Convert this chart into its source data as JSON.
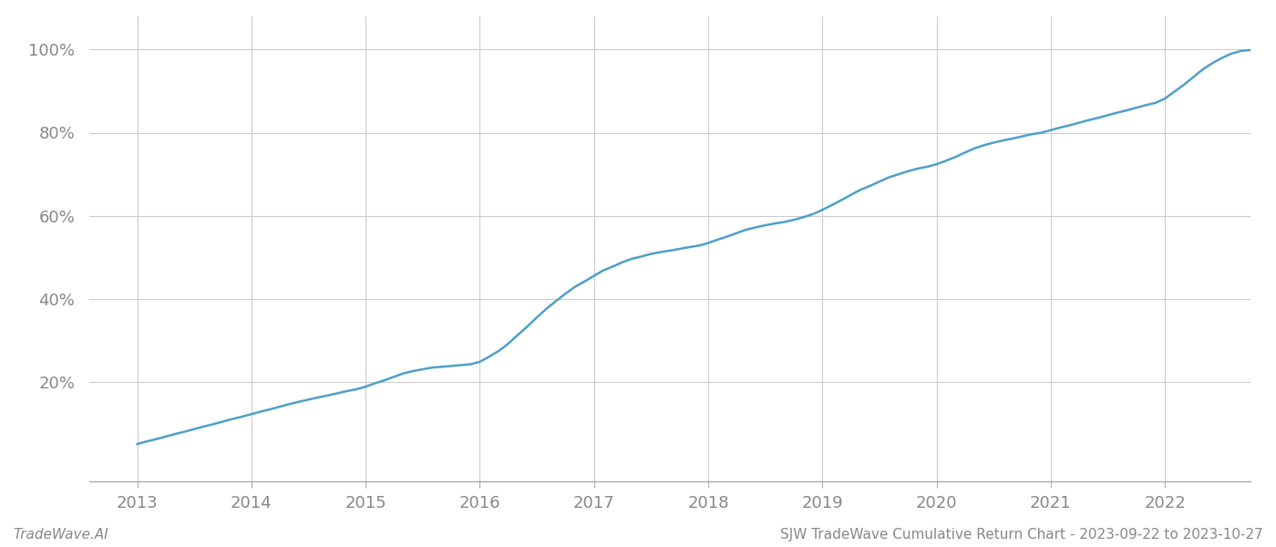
{
  "title": "SJW TradeWave Cumulative Return Chart - 2023-09-22 to 2023-10-27",
  "watermark": "TradeWave.AI",
  "x_years": [
    2013,
    2014,
    2015,
    2016,
    2017,
    2018,
    2019,
    2020,
    2021,
    2022
  ],
  "y_ticks": [
    0.2,
    0.4,
    0.6,
    0.8,
    1.0
  ],
  "y_tick_labels": [
    "20%",
    "40%",
    "60%",
    "80%",
    "100%"
  ],
  "line_color": "#4f9fca",
  "line_width": 1.8,
  "background_color": "#ffffff",
  "grid_color": "#cccccc",
  "x_data": [
    2013.0,
    2013.08,
    2013.17,
    2013.25,
    2013.33,
    2013.42,
    2013.5,
    2013.58,
    2013.67,
    2013.75,
    2013.83,
    2013.92,
    2014.0,
    2014.08,
    2014.17,
    2014.25,
    2014.33,
    2014.42,
    2014.5,
    2014.58,
    2014.67,
    2014.75,
    2014.83,
    2014.92,
    2015.0,
    2015.08,
    2015.17,
    2015.25,
    2015.33,
    2015.42,
    2015.5,
    2015.58,
    2015.67,
    2015.75,
    2015.83,
    2015.92,
    2016.0,
    2016.08,
    2016.17,
    2016.25,
    2016.33,
    2016.42,
    2016.5,
    2016.58,
    2016.67,
    2016.75,
    2016.83,
    2016.92,
    2017.0,
    2017.08,
    2017.17,
    2017.25,
    2017.33,
    2017.42,
    2017.5,
    2017.58,
    2017.67,
    2017.75,
    2017.83,
    2017.92,
    2018.0,
    2018.08,
    2018.17,
    2018.25,
    2018.33,
    2018.42,
    2018.5,
    2018.58,
    2018.67,
    2018.75,
    2018.83,
    2018.92,
    2019.0,
    2019.08,
    2019.17,
    2019.25,
    2019.33,
    2019.42,
    2019.5,
    2019.58,
    2019.67,
    2019.75,
    2019.83,
    2019.92,
    2020.0,
    2020.08,
    2020.17,
    2020.25,
    2020.33,
    2020.42,
    2020.5,
    2020.58,
    2020.67,
    2020.75,
    2020.83,
    2020.92,
    2021.0,
    2021.08,
    2021.17,
    2021.25,
    2021.33,
    2021.42,
    2021.5,
    2021.58,
    2021.67,
    2021.75,
    2021.83,
    2021.92,
    2022.0,
    2022.08,
    2022.17,
    2022.25,
    2022.33,
    2022.42,
    2022.5,
    2022.58,
    2022.67,
    2022.75
  ],
  "y_data": [
    0.05,
    0.056,
    0.062,
    0.068,
    0.074,
    0.08,
    0.086,
    0.092,
    0.098,
    0.104,
    0.11,
    0.116,
    0.122,
    0.128,
    0.134,
    0.14,
    0.146,
    0.152,
    0.157,
    0.162,
    0.167,
    0.172,
    0.177,
    0.182,
    0.188,
    0.196,
    0.204,
    0.212,
    0.22,
    0.226,
    0.23,
    0.234,
    0.236,
    0.238,
    0.24,
    0.242,
    0.248,
    0.26,
    0.275,
    0.292,
    0.312,
    0.334,
    0.355,
    0.375,
    0.395,
    0.412,
    0.428,
    0.442,
    0.455,
    0.468,
    0.478,
    0.488,
    0.496,
    0.502,
    0.508,
    0.512,
    0.516,
    0.52,
    0.524,
    0.528,
    0.534,
    0.542,
    0.55,
    0.558,
    0.566,
    0.572,
    0.577,
    0.581,
    0.585,
    0.59,
    0.596,
    0.604,
    0.614,
    0.625,
    0.638,
    0.65,
    0.662,
    0.672,
    0.682,
    0.692,
    0.7,
    0.707,
    0.713,
    0.718,
    0.724,
    0.732,
    0.742,
    0.752,
    0.762,
    0.77,
    0.776,
    0.781,
    0.786,
    0.791,
    0.796,
    0.8,
    0.806,
    0.812,
    0.818,
    0.824,
    0.83,
    0.836,
    0.842,
    0.848,
    0.854,
    0.86,
    0.866,
    0.872,
    0.882,
    0.898,
    0.916,
    0.934,
    0.952,
    0.968,
    0.98,
    0.99,
    0.997,
    0.999
  ],
  "xlim": [
    2012.58,
    2022.75
  ],
  "ylim": [
    -0.04,
    1.08
  ],
  "tick_color": "#888888",
  "tick_fontsize": 13,
  "title_fontsize": 11,
  "watermark_fontsize": 11
}
